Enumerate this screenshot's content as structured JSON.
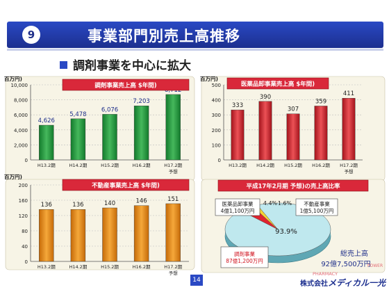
{
  "header": {
    "number": "9",
    "title": "事業部門別売上高推移"
  },
  "subtitle": "調剤事業を中心に拡大",
  "page_number": "14",
  "company": {
    "prefix": "株式会社",
    "brand": "メディカル一光",
    "pharmacy_line": "PHARMACY",
    "power_line": "POWER"
  },
  "colors": {
    "header": "#1c2f8f",
    "green_bar": "#2f9f47",
    "red_bar": "#c9282f",
    "panel_bg": "#f7f4e6",
    "title_bg": "#d9283a"
  },
  "chart_data": [
    {
      "type": "bar",
      "title": "調剤事業売上高 $年間)",
      "unit_label": "百万円)",
      "categories": [
        "H13.2期",
        "H14.2期",
        "H15.2期",
        "H16.2期",
        "H17.2期"
      ],
      "category_note": "予想",
      "values": [
        4626,
        5478,
        6076,
        7203,
        8712
      ],
      "value_labels": [
        "4,626",
        "5,478",
        "6,076",
        "7,203",
        "8,712"
      ],
      "ylim": [
        0,
        10000
      ],
      "yticks": [
        "0",
        "2,000",
        "4,000",
        "6,000",
        "8,000",
        "10,000"
      ],
      "grid": true
    },
    {
      "type": "bar",
      "title": "医薬品卸事業売上高 $年間)",
      "unit_label": "百万円)",
      "categories": [
        "H13.2期",
        "H14.2期",
        "H15.2期",
        "H16.2期",
        "H17.2期"
      ],
      "category_note": "予想",
      "values": [
        333,
        390,
        307,
        359,
        411
      ],
      "value_labels": [
        "333",
        "390",
        "307",
        "359",
        "411"
      ],
      "ylim": [
        0,
        500
      ],
      "yticks": [
        "0",
        "100",
        "200",
        "300",
        "400",
        "500"
      ],
      "grid": true
    },
    {
      "type": "bar",
      "title": "不動産事業売上高 $年間)",
      "unit_label": "百万円)",
      "categories": [
        "H13.2期",
        "H14.2期",
        "H15.2期",
        "H16.2期",
        "H17.2期"
      ],
      "category_note": "予想",
      "values": [
        136,
        136,
        140,
        146,
        151
      ],
      "value_labels": [
        "136",
        "136",
        "140",
        "146",
        "151"
      ],
      "ylim": [
        0,
        200
      ],
      "yticks": [
        "0",
        "40",
        "80",
        "120",
        "160",
        "200"
      ],
      "grid": true
    },
    {
      "type": "pie",
      "title": "平成17年2月期 予想)の売上高比率",
      "slices": [
        {
          "name": "調剤事業",
          "value": 93.9,
          "label": "93.9%",
          "amount": "87億1,200万円"
        },
        {
          "name": "医薬品卸事業",
          "value": 4.4,
          "label": "4.4%",
          "amount": "4億1,100万円"
        },
        {
          "name": "不動産事業",
          "value": 1.6,
          "label": "1.6%",
          "amount": "1億5,100万円"
        }
      ],
      "total": {
        "label": "総売上高",
        "amount": "92億7,500万円"
      }
    }
  ]
}
